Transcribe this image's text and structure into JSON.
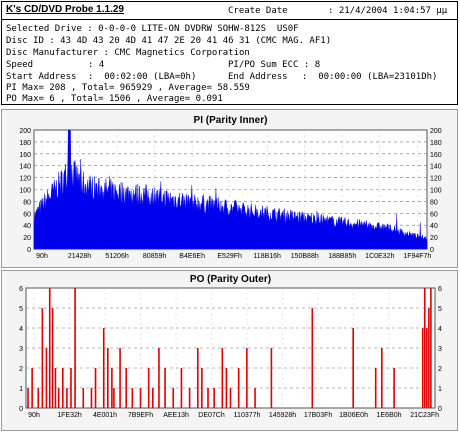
{
  "header": {
    "app_title": "K's CD/DVD Probe 1.1.29",
    "create_date_label": "Create Date",
    "create_date_value": ":   21/4/2004 1:04:57 μμ",
    "lines": [
      "Selected Drive : 0-0-0-0 LITE-ON DVDRW SOHW-812S  US0F",
      "Disc ID : 43 4D 43 20 4D 41 47 2E 20 41 46 31 (CMC MAG. AF1)",
      "Disc Manufacturer : CMC Magnetics Corporation"
    ],
    "speed_label": "Speed",
    "speed_value": ": 4",
    "pipo_label": "PI/PO Sum ECC : 8",
    "start_label": "Start Address",
    "start_value": ":  00:02:00 (LBA=0h)",
    "end_label": "End Address",
    "end_value": ":  00:00:00 (LBA=23101Dh)",
    "pi_summary": "PI Max= 208 , Total= 965929 , Average= 58.559",
    "po_summary": "PO Max= 6 , Total= 1506 , Average= 0.091"
  },
  "colors": {
    "pi": "#0000ee",
    "po": "#e00000",
    "plot_bg": "#ffffff",
    "panel_bg": "#f4f4f4"
  },
  "chart_data": [
    {
      "type": "area",
      "title": "PI (Parity Inner)",
      "ylim": [
        0,
        200
      ],
      "y_ticks": [
        "0",
        "20",
        "40",
        "60",
        "80",
        "100",
        "120",
        "140",
        "160",
        "180",
        "200"
      ],
      "x_tick_labels": [
        "90h",
        "21428h",
        "51206h",
        "80859h",
        "B4E6Eh",
        "E529Fh",
        "118B16h",
        "150B88h",
        "188B85h",
        "1C0E32h",
        "1F94F7h"
      ],
      "grid": true,
      "profile_x": [
        0,
        0.03,
        0.055,
        0.075,
        0.09,
        0.1,
        0.12,
        0.15,
        0.2,
        0.3,
        0.4,
        0.5,
        0.6,
        0.7,
        0.8,
        0.9,
        0.95,
        1.0
      ],
      "profile_y": [
        55,
        82,
        102,
        118,
        136,
        128,
        112,
        104,
        98,
        90,
        80,
        70,
        60,
        52,
        44,
        36,
        26,
        18
      ],
      "peak_max": 208
    },
    {
      "type": "bar",
      "title": "PO (Parity Outer)",
      "ylim": [
        0,
        6
      ],
      "y_ticks": [
        "0",
        "1",
        "2",
        "3",
        "4",
        "5",
        "6"
      ],
      "x_tick_labels": [
        "90h",
        "1FE32h",
        "4E001h",
        "7B9EFh",
        "AEE13h",
        "DE07Ch",
        "110377h",
        "145928h",
        "17B03Fh",
        "1B06E0h",
        "1E6B0h",
        "21C23Fh"
      ],
      "grid": true,
      "x": [
        0.005,
        0.015,
        0.03,
        0.04,
        0.05,
        0.058,
        0.065,
        0.072,
        0.08,
        0.09,
        0.1,
        0.11,
        0.12,
        0.14,
        0.16,
        0.17,
        0.19,
        0.2,
        0.21,
        0.215,
        0.23,
        0.245,
        0.26,
        0.28,
        0.3,
        0.31,
        0.325,
        0.34,
        0.36,
        0.38,
        0.4,
        0.42,
        0.43,
        0.445,
        0.46,
        0.48,
        0.49,
        0.5,
        0.52,
        0.54,
        0.56,
        0.6,
        0.7,
        0.8,
        0.855,
        0.87,
        0.9,
        0.97,
        0.975,
        0.98,
        0.985,
        0.99
      ],
      "values": [
        1,
        2,
        1,
        5,
        3,
        6,
        5,
        2,
        1,
        2,
        1,
        2,
        6,
        1,
        1,
        2,
        4,
        3,
        2,
        1,
        3,
        2,
        1,
        1,
        2,
        1,
        3,
        2,
        1,
        2,
        1,
        3,
        2,
        1,
        1,
        3,
        2,
        1,
        2,
        3,
        1,
        3,
        5,
        4,
        2,
        3,
        2,
        4,
        6,
        4,
        5,
        6
      ]
    }
  ]
}
